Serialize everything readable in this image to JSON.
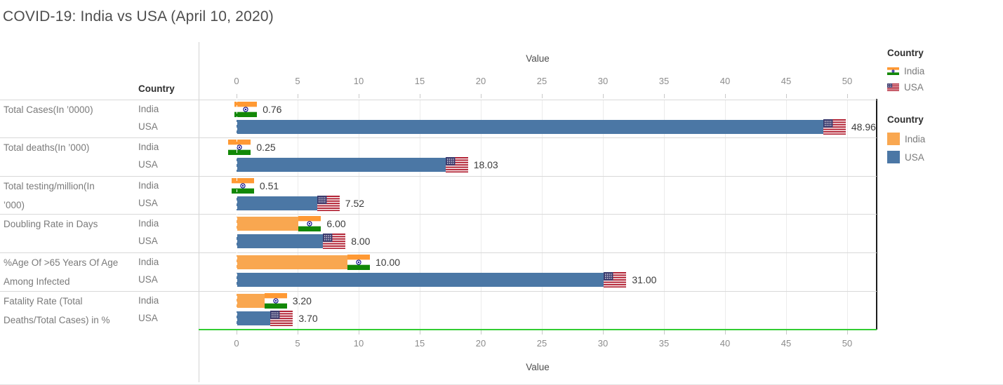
{
  "title": "COVID-19: India vs USA (April 10, 2020)",
  "country_column_header": "Country",
  "axis": {
    "title": "Value"
  },
  "legends": {
    "shape": {
      "title": "Country",
      "items": [
        {
          "label": "India",
          "icon": "india-flag"
        },
        {
          "label": "USA",
          "icon": "usa-flag"
        }
      ]
    },
    "color": {
      "title": "Country",
      "items": [
        {
          "label": "India",
          "color": "#F9A750"
        },
        {
          "label": "USA",
          "color": "#4B77A5"
        }
      ]
    }
  },
  "chart_data": {
    "type": "bar",
    "orientation": "horizontal",
    "title": "COVID-19: India vs USA (April 10, 2020)",
    "xlabel": "Value",
    "xlim": [
      0,
      50
    ],
    "x_ticks": [
      0,
      5,
      10,
      15,
      20,
      25,
      30,
      35,
      40,
      45,
      50
    ],
    "grid": true,
    "legend_position": "right",
    "baseline_color": "#32CD32",
    "categories": [
      {
        "label": "Total Cases(In ’0000)",
        "lines": [
          "Total Cases(In ’0000)"
        ]
      },
      {
        "label": "Total deaths(In ’000)",
        "lines": [
          "Total deaths(In ’000)"
        ]
      },
      {
        "label": "Total testing/million(In ’000)",
        "lines": [
          "Total testing/million(In",
          "’000)"
        ]
      },
      {
        "label": "Doubling Rate in Days",
        "lines": [
          "Doubling Rate in Days"
        ]
      },
      {
        "label": "%Age Of >65 Years Of Age Among Infected",
        "lines": [
          "%Age Of >65 Years Of Age",
          "Among Infected"
        ]
      },
      {
        "label": "Fatality Rate (Total Deaths/Total Cases) in %",
        "lines": [
          "Fatality Rate (Total",
          "Deaths/Total Cases) in %"
        ]
      }
    ],
    "series": [
      {
        "name": "India",
        "color": "#F9A750",
        "flag": "india",
        "values": [
          0.76,
          0.25,
          0.51,
          6.0,
          10.0,
          3.2
        ],
        "labels": [
          "0.76",
          "0.25",
          "0.51",
          "6.00",
          "10.00",
          "3.20"
        ]
      },
      {
        "name": "USA",
        "color": "#4B77A5",
        "flag": "usa",
        "values": [
          48.96,
          18.03,
          7.52,
          8.0,
          31.0,
          3.7
        ],
        "labels": [
          "48.96",
          "18.03",
          "7.52",
          "8.00",
          "31.00",
          "3.70"
        ]
      }
    ]
  }
}
